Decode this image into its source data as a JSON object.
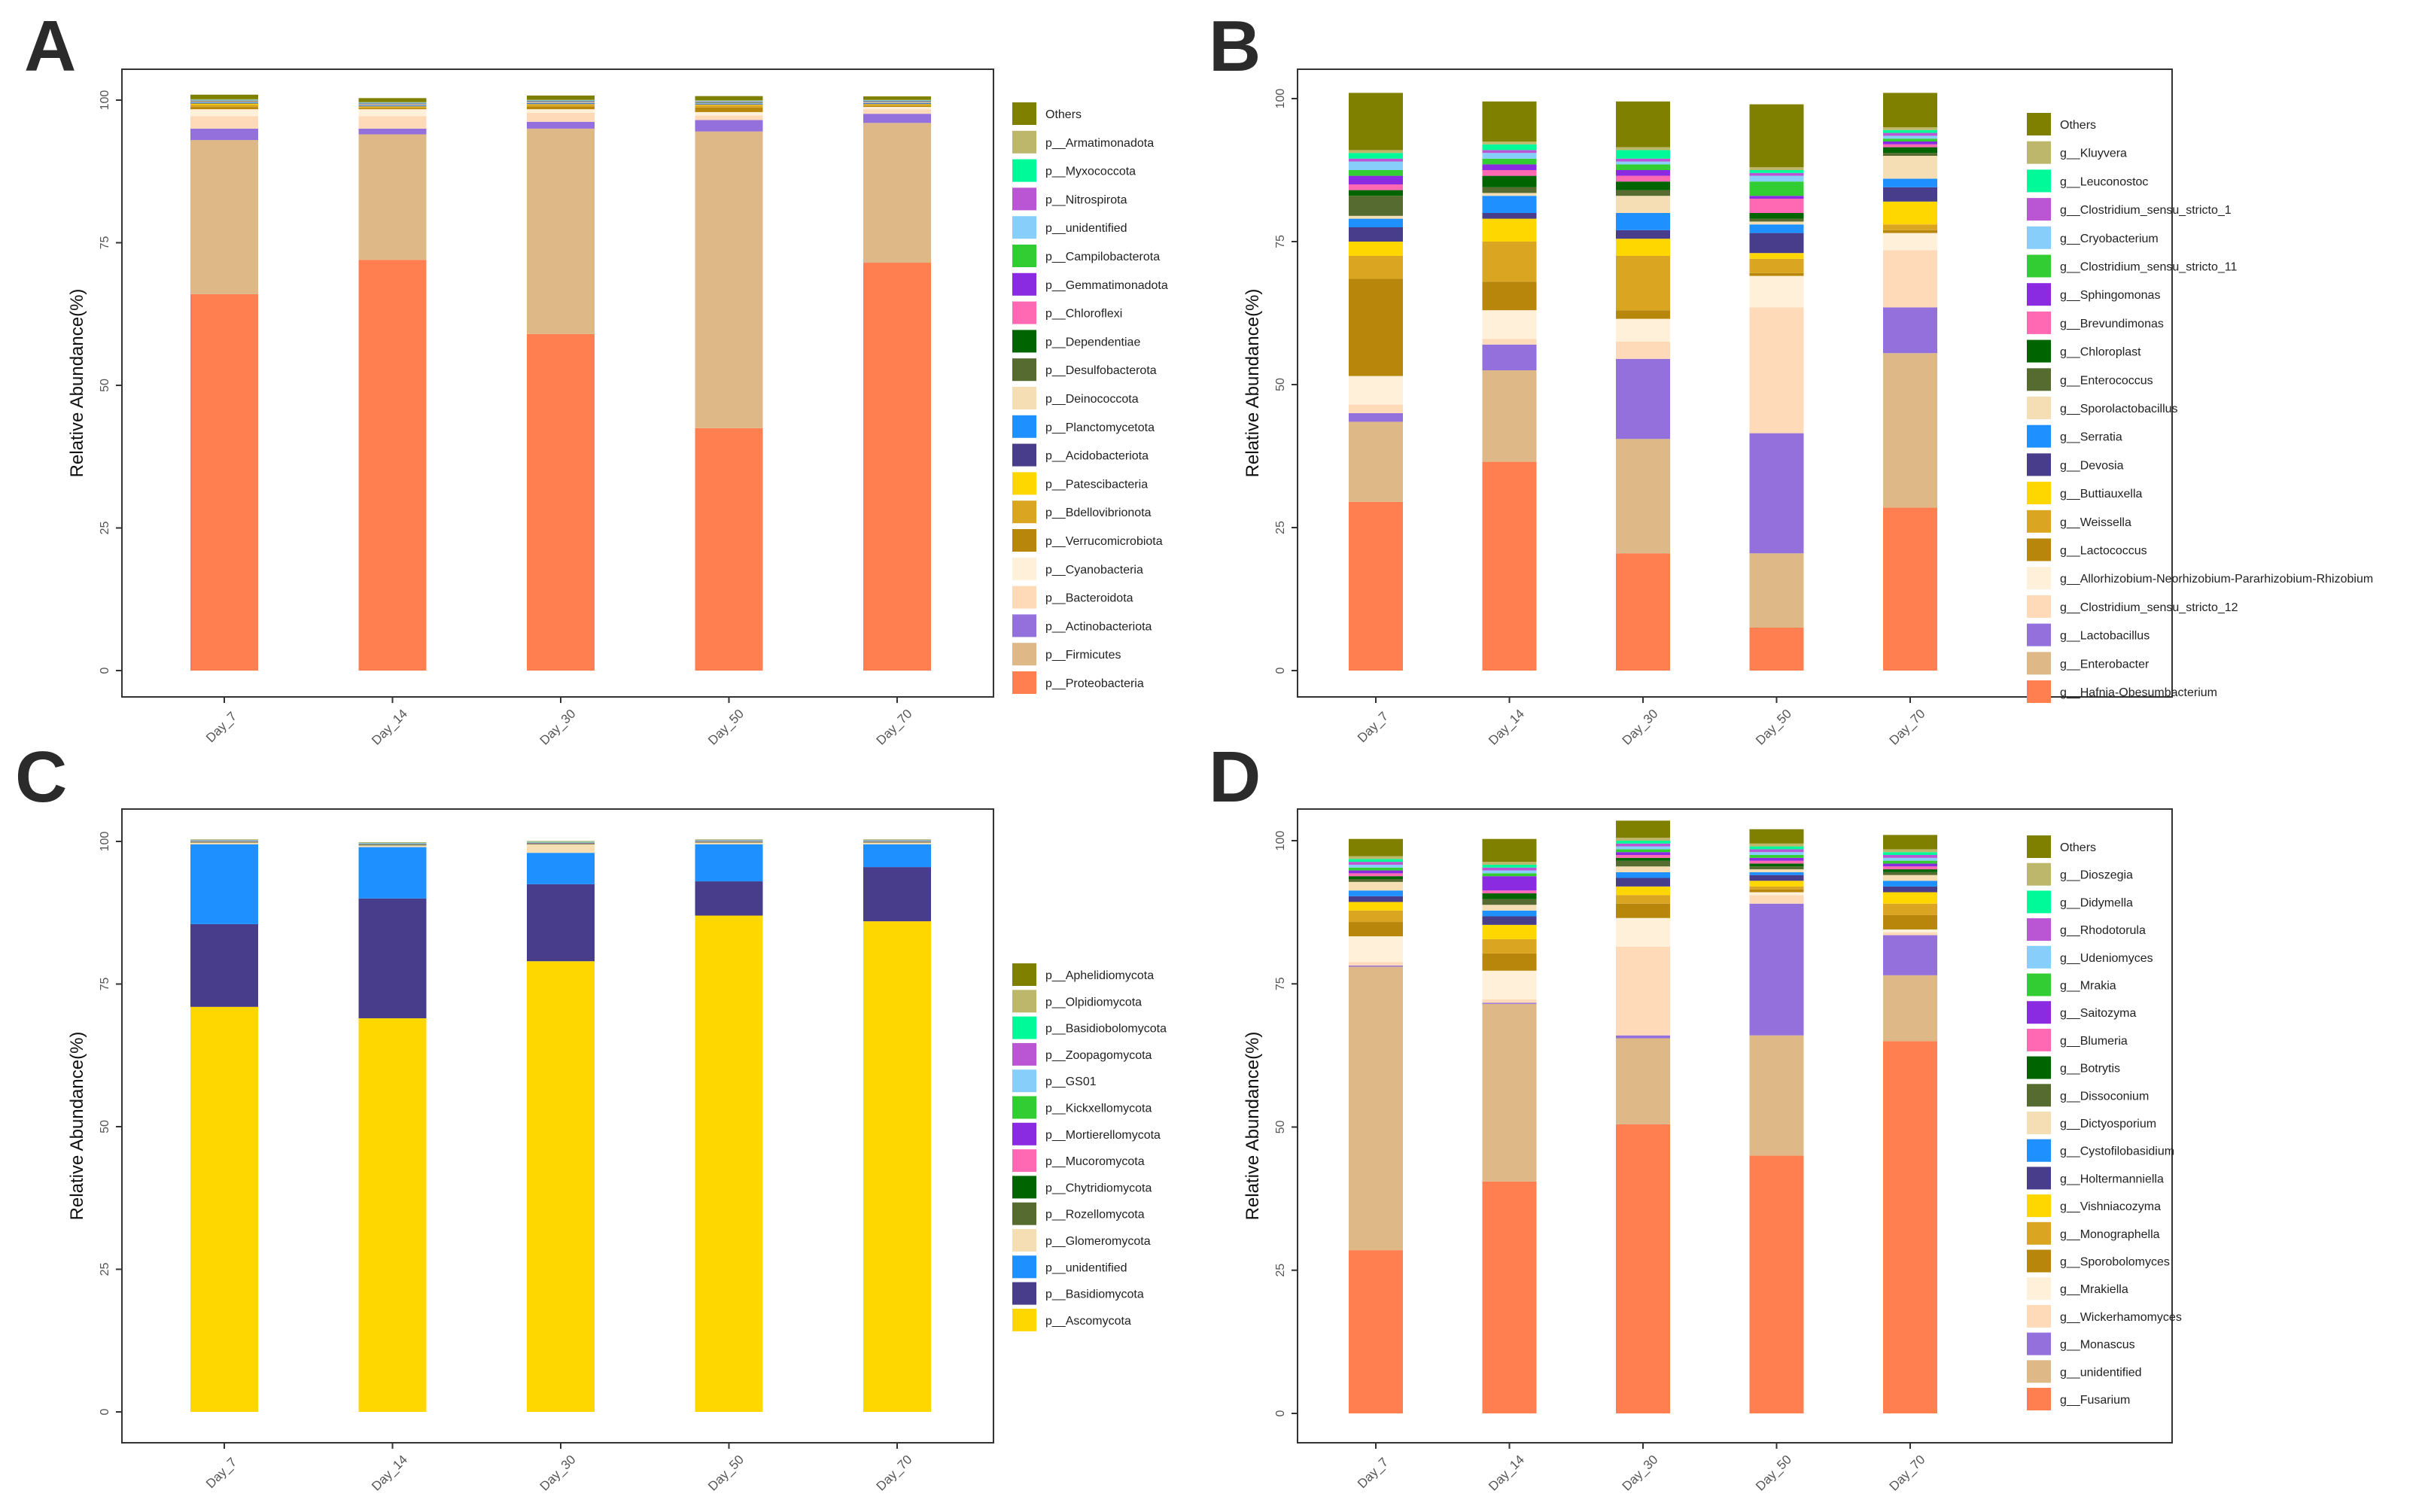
{
  "chart_data": [
    {
      "panel": "A",
      "type": "bar",
      "stacked": true,
      "ylabel": "Relative Abundance(%)",
      "ylim": [
        0,
        100
      ],
      "yticks": [
        "0",
        "25",
        "50",
        "75",
        "100"
      ],
      "categories": [
        "Day_7",
        "Day_14",
        "Day_30",
        "Day_50",
        "Day_70"
      ],
      "series": [
        {
          "name": "p__Proteobacteria",
          "color": "#FF7F50",
          "values": [
            66,
            72,
            59,
            42.5,
            71.5
          ]
        },
        {
          "name": "p__Firmicutes",
          "color": "#DEB887",
          "values": [
            27,
            22,
            36,
            52,
            24.5
          ]
        },
        {
          "name": "p__Actinobacteriota",
          "color": "#9370DB",
          "values": [
            2,
            1,
            1.2,
            2,
            1.6
          ]
        },
        {
          "name": "p__Bacteroidota",
          "color": "#FFDAB9",
          "values": [
            2.2,
            2.2,
            1.6,
            0.8,
            0.8
          ]
        },
        {
          "name": "p__Cyanobacteria",
          "color": "#FFF0D9",
          "values": [
            1.2,
            1.2,
            0.6,
            0.6,
            0.4
          ]
        },
        {
          "name": "p__Verrucomicrobiota",
          "color": "#B8860B",
          "values": [
            0.4,
            0.2,
            0.5,
            0.8,
            0.2
          ]
        },
        {
          "name": "p__Bdellovibrionota",
          "color": "#DAA520",
          "values": [
            0.4,
            0.2,
            0.3,
            0.4,
            0.2
          ]
        },
        {
          "name": "p__Patescibacteria",
          "color": "#FFD700",
          "values": [
            0.2,
            0.1,
            0.1,
            0.1,
            0.1
          ]
        },
        {
          "name": "p__Acidobacteriota",
          "color": "#483D8B",
          "values": [
            0.1,
            0.1,
            0.1,
            0.1,
            0.1
          ]
        },
        {
          "name": "p__Planctomycetota",
          "color": "#1E90FF",
          "values": [
            0.1,
            0.1,
            0.1,
            0.1,
            0.1
          ]
        },
        {
          "name": "p__Deinococcota",
          "color": "#F5DEB3",
          "values": [
            0.1,
            0.1,
            0.1,
            0.1,
            0.1
          ]
        },
        {
          "name": "p__Desulfobacterota",
          "color": "#556B2F",
          "values": [
            0.05,
            0.05,
            0.05,
            0.05,
            0.05
          ]
        },
        {
          "name": "p__Dependentiae",
          "color": "#006400",
          "values": [
            0.05,
            0.05,
            0.05,
            0.05,
            0.05
          ]
        },
        {
          "name": "p__Chloroflexi",
          "color": "#FF69B4",
          "values": [
            0.05,
            0.05,
            0.05,
            0.05,
            0.05
          ]
        },
        {
          "name": "p__Gemmatimonadota",
          "color": "#8A2BE2",
          "values": [
            0.05,
            0.05,
            0.05,
            0.05,
            0.05
          ]
        },
        {
          "name": "p__Campilobacterota",
          "color": "#32CD32",
          "values": [
            0.05,
            0.05,
            0.05,
            0.05,
            0.05
          ]
        },
        {
          "name": "p__unidentified",
          "color": "#87CEFA",
          "values": [
            0.05,
            0.05,
            0.05,
            0.05,
            0.05
          ]
        },
        {
          "name": "p__Nitrospirota",
          "color": "#BA55D3",
          "values": [
            0.05,
            0.05,
            0.05,
            0.05,
            0.05
          ]
        },
        {
          "name": "p__Myxococcota",
          "color": "#00FA9A",
          "values": [
            0.05,
            0.05,
            0.05,
            0.05,
            0.05
          ]
        },
        {
          "name": "p__Armatimonadota",
          "color": "#BDB76B",
          "values": [
            0.05,
            0.05,
            0.05,
            0.05,
            0.05
          ]
        },
        {
          "name": "Others",
          "color": "#808000",
          "values": [
            0.8,
            0.7,
            0.75,
            0.75,
            0.6
          ]
        }
      ]
    },
    {
      "panel": "B",
      "type": "bar",
      "stacked": true,
      "ylabel": "Relative Abundance(%)",
      "ylim": [
        0,
        100
      ],
      "yticks": [
        "0",
        "25",
        "50",
        "75",
        "100"
      ],
      "categories": [
        "Day_7",
        "Day_14",
        "Day_30",
        "Day_50",
        "Day_70"
      ],
      "series": [
        {
          "name": "g__Hafnia-Obesumbacterium",
          "color": "#FF7F50",
          "values": [
            29.5,
            36.5,
            20.5,
            7.5,
            28.5
          ]
        },
        {
          "name": "g__Enterobacter",
          "color": "#DEB887",
          "values": [
            14,
            16,
            20,
            13,
            27
          ]
        },
        {
          "name": "g__Lactobacillus",
          "color": "#9370DB",
          "values": [
            1.5,
            4.5,
            14,
            21,
            8
          ]
        },
        {
          "name": "g__Clostridium_sensu_stricto_12",
          "color": "#FFDAB9",
          "values": [
            1.5,
            1,
            3,
            22,
            10
          ]
        },
        {
          "name": "g__Allorhizobium-Neorhizobium-Pararhizobium-Rhizobium",
          "color": "#FFF0D9",
          "values": [
            5,
            5,
            4,
            5.5,
            3
          ]
        },
        {
          "name": "g__Lactococcus",
          "color": "#B8860B",
          "values": [
            17,
            5,
            1.5,
            0.5,
            0.5
          ]
        },
        {
          "name": "g__Weissella",
          "color": "#DAA520",
          "values": [
            4,
            7,
            9.5,
            2.5,
            1
          ]
        },
        {
          "name": "g__Buttiauxella",
          "color": "#FFD700",
          "values": [
            2.5,
            4,
            3,
            1,
            4
          ]
        },
        {
          "name": "g__Devosia",
          "color": "#483D8B",
          "values": [
            2.5,
            1,
            1.5,
            3.5,
            2.5
          ]
        },
        {
          "name": "g__Serratia",
          "color": "#1E90FF",
          "values": [
            1.5,
            3,
            3,
            1.5,
            1.5
          ]
        },
        {
          "name": "g__Sporolactobacillus",
          "color": "#F5DEB3",
          "values": [
            0.5,
            0.5,
            3,
            0.5,
            4
          ]
        },
        {
          "name": "g__Enterococcus",
          "color": "#556B2F",
          "values": [
            3.5,
            1,
            1,
            0.5,
            0.5
          ]
        },
        {
          "name": "g__Chloroplast",
          "color": "#006400",
          "values": [
            1,
            2,
            1.5,
            1,
            1
          ]
        },
        {
          "name": "g__Brevundimonas",
          "color": "#FF69B4",
          "values": [
            1,
            1,
            1,
            2.5,
            0.5
          ]
        },
        {
          "name": "g__Sphingomonas",
          "color": "#8A2BE2",
          "values": [
            1.5,
            1,
            1,
            0.5,
            0.5
          ]
        },
        {
          "name": "g__Clostridium_sensu_stricto_11",
          "color": "#32CD32",
          "values": [
            1,
            1,
            1,
            2.5,
            0.5
          ]
        },
        {
          "name": "g__Cryobacterium",
          "color": "#87CEFA",
          "values": [
            1.5,
            1,
            0.5,
            1,
            0.5
          ]
        },
        {
          "name": "g__Clostridium_sensu_stricto_1",
          "color": "#BA55D3",
          "values": [
            0.5,
            0.5,
            0.5,
            0.5,
            0.5
          ]
        },
        {
          "name": "g__Leuconostoc",
          "color": "#00FA9A",
          "values": [
            1,
            1,
            1.5,
            0.5,
            0.5
          ]
        },
        {
          "name": "g__Kluyvera",
          "color": "#BDB76B",
          "values": [
            0.5,
            0.5,
            0.5,
            0.5,
            0.5
          ]
        },
        {
          "name": "Others",
          "color": "#808000",
          "values": [
            10,
            7,
            8,
            11,
            6
          ]
        }
      ]
    },
    {
      "panel": "C",
      "type": "bar",
      "stacked": true,
      "ylabel": "Relative Abundance(%)",
      "ylim": [
        0,
        100
      ],
      "yticks": [
        "0",
        "25",
        "50",
        "75",
        "100"
      ],
      "categories": [
        "Day_7",
        "Day_14",
        "Day_30",
        "Day_50",
        "Day_70"
      ],
      "series": [
        {
          "name": "p__Ascomycota",
          "color": "#FFD700",
          "values": [
            71,
            69,
            79,
            87,
            86
          ]
        },
        {
          "name": "p__Basidiomycota",
          "color": "#483D8B",
          "values": [
            14.5,
            21,
            13.5,
            6,
            9.5
          ]
        },
        {
          "name": "p__unidentified",
          "color": "#1E90FF",
          "values": [
            14,
            9,
            5.5,
            6.5,
            4
          ]
        },
        {
          "name": "p__Glomeromycota",
          "color": "#F5DEB3",
          "values": [
            0.3,
            0.3,
            1.5,
            0.3,
            0.3
          ]
        },
        {
          "name": "p__Rozellomycota",
          "color": "#556B2F",
          "values": [
            0.1,
            0.1,
            0.1,
            0.1,
            0.1
          ]
        },
        {
          "name": "p__Chytridiomycota",
          "color": "#006400",
          "values": [
            0.05,
            0.05,
            0.05,
            0.05,
            0.05
          ]
        },
        {
          "name": "p__Mucoromycota",
          "color": "#FF69B4",
          "values": [
            0.05,
            0.05,
            0.05,
            0.05,
            0.05
          ]
        },
        {
          "name": "p__Mortierellomycota",
          "color": "#8A2BE2",
          "values": [
            0.05,
            0.05,
            0.05,
            0.05,
            0.05
          ]
        },
        {
          "name": "p__Kickxellomycota",
          "color": "#32CD32",
          "values": [
            0.05,
            0.05,
            0.05,
            0.05,
            0.05
          ]
        },
        {
          "name": "p__GS01",
          "color": "#87CEFA",
          "values": [
            0.05,
            0.05,
            0.05,
            0.05,
            0.05
          ]
        },
        {
          "name": "p__Zoopagomycota",
          "color": "#BA55D3",
          "values": [
            0.05,
            0.05,
            0.05,
            0.05,
            0.05
          ]
        },
        {
          "name": "p__Basidiobolomycota",
          "color": "#00FA9A",
          "values": [
            0.05,
            0.05,
            0.05,
            0.05,
            0.05
          ]
        },
        {
          "name": "p__Olpidiomycota",
          "color": "#BDB76B",
          "values": [
            0.05,
            0.05,
            0.05,
            0.05,
            0.05
          ]
        },
        {
          "name": "p__Aphelidiomycota",
          "color": "#808000",
          "values": [
            0.05,
            0.05,
            0.05,
            0.05,
            0.05
          ]
        }
      ]
    },
    {
      "panel": "D",
      "type": "bar",
      "stacked": true,
      "ylabel": "Relative Abundance(%)",
      "ylim": [
        0,
        100
      ],
      "yticks": [
        "0",
        "25",
        "50",
        "75",
        "100"
      ],
      "categories": [
        "Day_7",
        "Day_14",
        "Day_30",
        "Day_50",
        "Day_70"
      ],
      "series": [
        {
          "name": "g__Fusarium",
          "color": "#FF7F50",
          "values": [
            28.5,
            40.5,
            50.5,
            45,
            65
          ]
        },
        {
          "name": "g__unidentified",
          "color": "#DEB887",
          "values": [
            49.5,
            31,
            15,
            21,
            11.5
          ]
        },
        {
          "name": "g__Monascus",
          "color": "#9370DB",
          "values": [
            0.2,
            0.2,
            0.5,
            23,
            7
          ]
        },
        {
          "name": "g__Wickerhamomyces",
          "color": "#FFDAB9",
          "values": [
            0.6,
            0.6,
            15.5,
            1.5,
            0.5
          ]
        },
        {
          "name": "g__Mrakiella",
          "color": "#FFF0D9",
          "values": [
            4.5,
            5,
            5,
            0.5,
            0.5
          ]
        },
        {
          "name": "g__Sporobolomyces",
          "color": "#B8860B",
          "values": [
            2.5,
            3,
            2.5,
            0.5,
            2.5
          ]
        },
        {
          "name": "g__Monographella",
          "color": "#DAA520",
          "values": [
            2,
            2.5,
            1.5,
            0.5,
            2
          ]
        },
        {
          "name": "g__Vishniacozyma",
          "color": "#FFD700",
          "values": [
            1.5,
            2.5,
            1.5,
            1,
            2
          ]
        },
        {
          "name": "g__Holtermanniella",
          "color": "#483D8B",
          "values": [
            1,
            1.5,
            1.5,
            1,
            1
          ]
        },
        {
          "name": "g__Cystofilobasidium",
          "color": "#1E90FF",
          "values": [
            1,
            1,
            1,
            0.5,
            1
          ]
        },
        {
          "name": "g__Dictyosporium",
          "color": "#F5DEB3",
          "values": [
            1.5,
            1,
            1,
            0.5,
            1
          ]
        },
        {
          "name": "g__Dissoconium",
          "color": "#556B2F",
          "values": [
            0.5,
            1,
            1,
            0.5,
            0.5
          ]
        },
        {
          "name": "g__Botrytis",
          "color": "#006400",
          "values": [
            0.5,
            1,
            0.5,
            0.5,
            0.5
          ]
        },
        {
          "name": "g__Blumeria",
          "color": "#FF69B4",
          "values": [
            0.5,
            0.5,
            0.5,
            0.5,
            0.5
          ]
        },
        {
          "name": "g__Saitozyma",
          "color": "#8A2BE2",
          "values": [
            0.5,
            2.5,
            0.5,
            0.5,
            0.5
          ]
        },
        {
          "name": "g__Mrakia",
          "color": "#32CD32",
          "values": [
            0.5,
            0.5,
            0.5,
            0.5,
            0.5
          ]
        },
        {
          "name": "g__Udeniomyces",
          "color": "#87CEFA",
          "values": [
            0.5,
            0.5,
            0.5,
            0.5,
            0.5
          ]
        },
        {
          "name": "g__Rhodotorula",
          "color": "#BA55D3",
          "values": [
            0.5,
            0.5,
            0.5,
            0.5,
            0.5
          ]
        },
        {
          "name": "g__Didymella",
          "color": "#00FA9A",
          "values": [
            0.5,
            0.5,
            0.5,
            0.5,
            0.5
          ]
        },
        {
          "name": "g__Dioszegia",
          "color": "#BDB76B",
          "values": [
            0.5,
            0.5,
            0.5,
            0.5,
            0.5
          ]
        },
        {
          "name": "Others",
          "color": "#808000",
          "values": [
            3,
            4,
            3,
            2.5,
            2.5
          ]
        }
      ]
    }
  ]
}
